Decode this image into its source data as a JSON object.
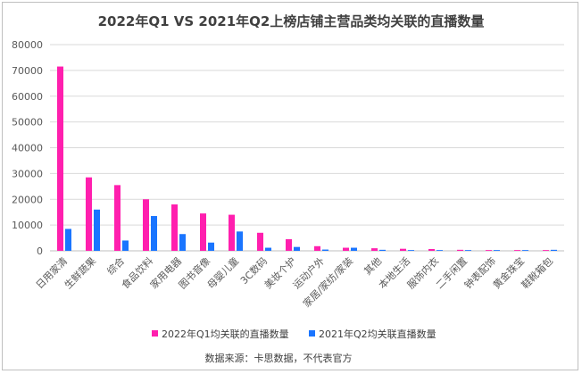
{
  "chart_data": {
    "type": "bar",
    "title": "2022年Q1 VS 2021年Q2上榜店铺主营品类均关联的直播数量",
    "categories": [
      "日用家清",
      "生鲜蔬果",
      "综合",
      "食品饮料",
      "家用电器",
      "图书音像",
      "母婴儿童",
      "3C数码",
      "美妆个护",
      "运动户外",
      "家居/家纺/家装",
      "其他",
      "本地生活",
      "服饰内衣",
      "二手闲置",
      "钟表配饰",
      "黄金珠宝",
      "鞋靴箱包"
    ],
    "series": [
      {
        "name": "2022年Q1均关联的直播数量",
        "color": "#FF1FAE",
        "values": [
          71500,
          28500,
          25500,
          20000,
          18000,
          14500,
          14000,
          7000,
          4500,
          1800,
          1200,
          1000,
          800,
          700,
          400,
          300,
          300,
          300
        ]
      },
      {
        "name": "2021年Q2均关联直播数量",
        "color": "#1A75FF",
        "values": [
          8500,
          16000,
          4000,
          13500,
          6500,
          3200,
          7500,
          1200,
          1500,
          500,
          1200,
          400,
          300,
          300,
          300,
          300,
          300,
          400
        ]
      }
    ],
    "ylim": [
      0,
      80000
    ],
    "yticks": [
      0,
      10000,
      20000,
      30000,
      40000,
      50000,
      60000,
      70000,
      80000
    ],
    "grid": true,
    "legend": "bottom",
    "xlabel": "",
    "ylabel": ""
  },
  "source_note": "数据来源：卡思数据，不代表官方"
}
